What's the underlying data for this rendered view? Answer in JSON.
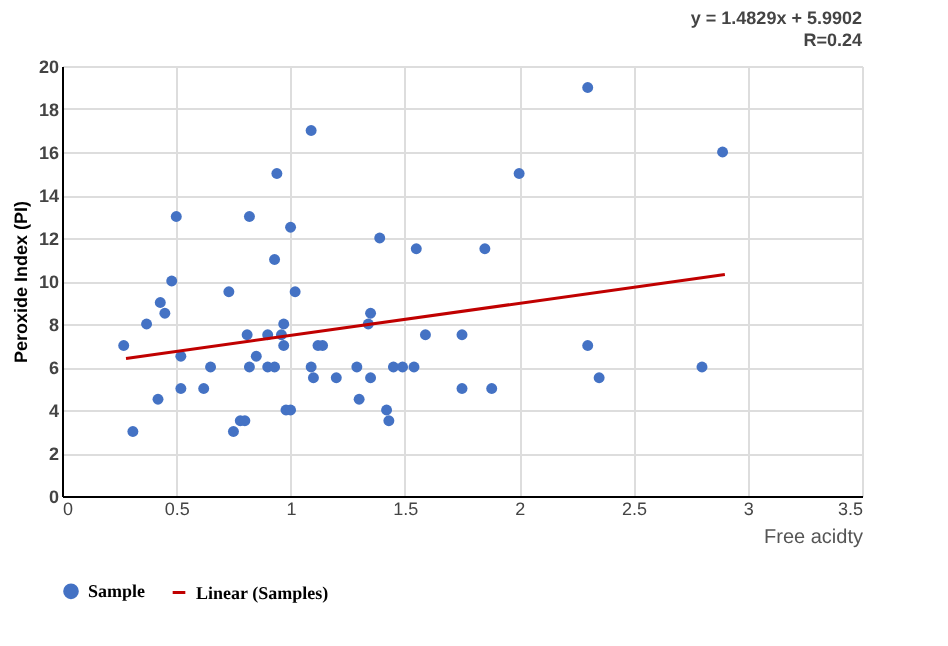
{
  "chart_data": {
    "type": "scatter",
    "xlabel": "Free acidty",
    "ylabel": "Peroxide Index (PI)",
    "annotations": [
      "y = 1.4829x + 5.9902",
      "R=0.24"
    ],
    "xlim": [
      0,
      3.5
    ],
    "xticks": [
      0,
      0.5,
      1,
      1.5,
      2,
      2.5,
      3,
      3.5
    ],
    "ylim": [
      0,
      20
    ],
    "yticks": [
      0,
      2,
      4,
      6,
      8,
      10,
      12,
      14,
      16,
      18,
      20
    ],
    "grid": true,
    "legend": "bottom",
    "series": [
      {
        "name": "Sample",
        "marker": "circle",
        "color": "#4472c4",
        "x": [
          0.27,
          0.31,
          0.37,
          0.42,
          0.43,
          0.45,
          0.48,
          0.5,
          0.52,
          0.52,
          0.62,
          0.65,
          0.73,
          0.75,
          0.78,
          0.8,
          0.82,
          0.81,
          0.82,
          0.85,
          0.9,
          0.9,
          0.93,
          0.93,
          0.94,
          0.96,
          0.97,
          0.97,
          0.98,
          1.0,
          1.0,
          1.02,
          1.09,
          1.09,
          1.1,
          1.12,
          1.14,
          1.2,
          1.29,
          1.3,
          1.35,
          1.34,
          1.35,
          1.39,
          1.42,
          1.43,
          1.45,
          1.49,
          1.54,
          1.55,
          1.59,
          1.75,
          1.75,
          1.85,
          1.88,
          2.0,
          2.3,
          2.3,
          2.35,
          2.8,
          2.89
        ],
        "values": [
          7,
          3,
          8,
          4.5,
          9,
          8.5,
          10,
          13,
          6.5,
          5,
          5,
          6,
          9.5,
          3,
          3.5,
          3.5,
          13,
          7.5,
          6,
          6.5,
          7.5,
          6,
          6,
          11,
          15,
          7.5,
          8,
          7,
          4,
          4,
          12.5,
          9.5,
          17,
          6,
          5.5,
          7,
          7,
          5.5,
          6,
          4.5,
          8.5,
          8,
          5.5,
          12,
          4,
          3.5,
          6,
          6,
          6,
          11.5,
          7.5,
          7.5,
          5,
          11.5,
          5,
          15,
          19,
          7,
          5.5,
          6,
          16
        ]
      },
      {
        "name": "Linear (Samples)",
        "type": "line",
        "marker": "none",
        "color": "#c00000",
        "line_style": "solid",
        "x": [
          0.28,
          2.9
        ],
        "values": [
          6.4,
          10.3
        ]
      }
    ]
  }
}
